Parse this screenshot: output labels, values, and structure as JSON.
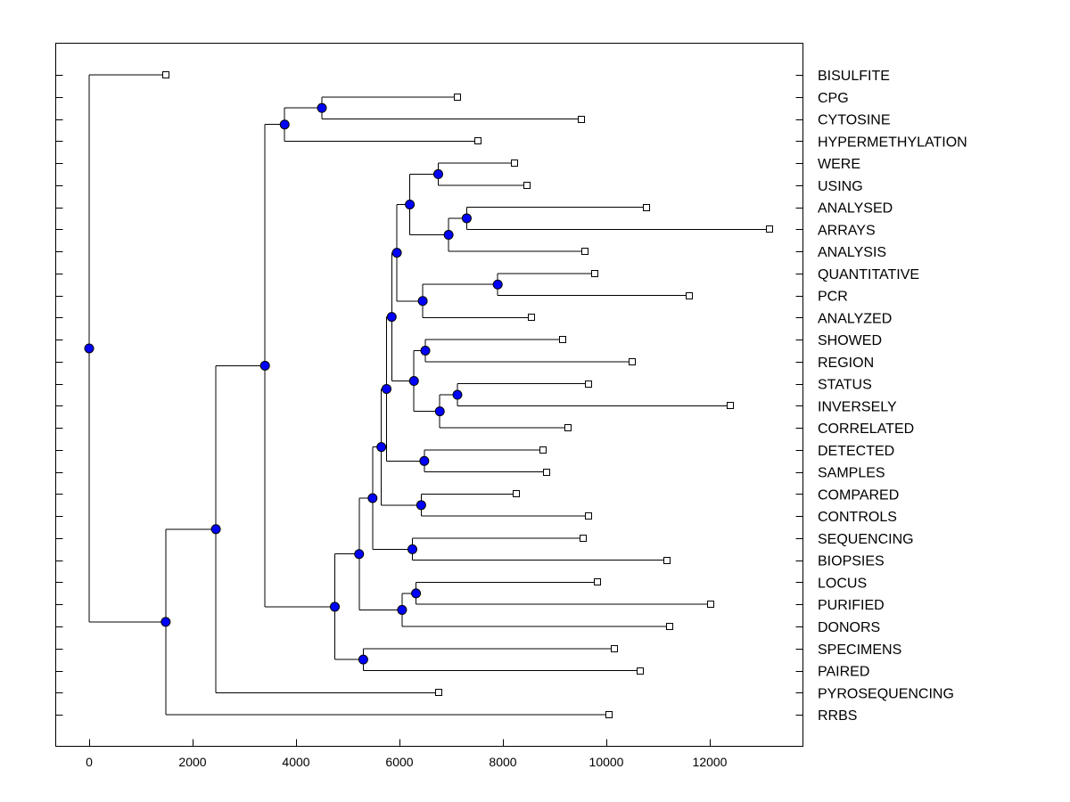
{
  "chart_data": {
    "type": "dendrogram",
    "title": "",
    "xlabel": "",
    "ylabel": "",
    "xlim": [
      -650,
      13800
    ],
    "x_ticks": [
      0,
      2000,
      4000,
      6000,
      8000,
      10000,
      12000
    ],
    "x_tick_labels": [
      "0",
      "2000",
      "4000",
      "6000",
      "8000",
      "10000",
      "12000"
    ],
    "node_color": "#0000ff",
    "leaves": [
      {
        "label": "BISULFITE",
        "value": 1480
      },
      {
        "label": "CPG",
        "value": 7120
      },
      {
        "label": "CYTOSINE",
        "value": 9520
      },
      {
        "label": "HYPERMETHYLATION",
        "value": 7520
      },
      {
        "label": "WERE",
        "value": 8230
      },
      {
        "label": "USING",
        "value": 8470
      },
      {
        "label": "ANALYSED",
        "value": 10780
      },
      {
        "label": "ARRAYS",
        "value": 13160
      },
      {
        "label": "ANALYSIS",
        "value": 9580
      },
      {
        "label": "QUANTITATIVE",
        "value": 9770
      },
      {
        "label": "PCR",
        "value": 11600
      },
      {
        "label": "ANALYZED",
        "value": 8550
      },
      {
        "label": "SHOWED",
        "value": 9150
      },
      {
        "label": "REGION",
        "value": 10500
      },
      {
        "label": "STATUS",
        "value": 9650
      },
      {
        "label": "INVERSELY",
        "value": 12400
      },
      {
        "label": "CORRELATED",
        "value": 9250
      },
      {
        "label": "DETECTED",
        "value": 8780
      },
      {
        "label": "SAMPLES",
        "value": 8840
      },
      {
        "label": "COMPARED",
        "value": 8250
      },
      {
        "label": "CONTROLS",
        "value": 9650
      },
      {
        "label": "SEQUENCING",
        "value": 9560
      },
      {
        "label": "BIOPSIES",
        "value": 11180
      },
      {
        "label": "LOCUS",
        "value": 9820
      },
      {
        "label": "PURIFIED",
        "value": 12020
      },
      {
        "label": "DONORS",
        "value": 11220
      },
      {
        "label": "SPECIMENS",
        "value": 10150
      },
      {
        "label": "PAIRED",
        "value": 10650
      },
      {
        "label": "PYROSEQUENCING",
        "value": 6750
      },
      {
        "label": "RRBS",
        "value": 10050
      }
    ],
    "merges": [
      {
        "id": "n1",
        "value": 4500,
        "children": [
          "CPG",
          "CYTOSINE"
        ]
      },
      {
        "id": "n2",
        "value": 3780,
        "children": [
          "n1",
          "HYPERMETHYLATION"
        ]
      },
      {
        "id": "n3",
        "value": 6750,
        "children": [
          "WERE",
          "USING"
        ]
      },
      {
        "id": "n4",
        "value": 7300,
        "children": [
          "ANALYSED",
          "ARRAYS"
        ]
      },
      {
        "id": "n5",
        "value": 6950,
        "children": [
          "n4",
          "ANALYSIS"
        ]
      },
      {
        "id": "n6",
        "value": 6200,
        "children": [
          "n3",
          "n5"
        ]
      },
      {
        "id": "n7",
        "value": 7900,
        "children": [
          "QUANTITATIVE",
          "PCR"
        ]
      },
      {
        "id": "n8",
        "value": 6450,
        "children": [
          "n7",
          "ANALYZED"
        ]
      },
      {
        "id": "n9",
        "value": 5950,
        "children": [
          "n6",
          "n8"
        ]
      },
      {
        "id": "n10",
        "value": 6500,
        "children": [
          "SHOWED",
          "REGION"
        ]
      },
      {
        "id": "n11",
        "value": 7120,
        "children": [
          "STATUS",
          "INVERSELY"
        ]
      },
      {
        "id": "n12",
        "value": 6780,
        "children": [
          "n11",
          "CORRELATED"
        ]
      },
      {
        "id": "n13",
        "value": 6280,
        "children": [
          "n10",
          "n12"
        ]
      },
      {
        "id": "n14",
        "value": 5850,
        "children": [
          "n9",
          "n13"
        ]
      },
      {
        "id": "n15",
        "value": 6480,
        "children": [
          "DETECTED",
          "SAMPLES"
        ]
      },
      {
        "id": "n16",
        "value": 5750,
        "children": [
          "n14",
          "n15"
        ]
      },
      {
        "id": "n17",
        "value": 6420,
        "children": [
          "COMPARED",
          "CONTROLS"
        ]
      },
      {
        "id": "n18",
        "value": 5650,
        "children": [
          "n16",
          "n17"
        ]
      },
      {
        "id": "n19",
        "value": 6250,
        "children": [
          "SEQUENCING",
          "BIOPSIES"
        ]
      },
      {
        "id": "n20",
        "value": 5480,
        "children": [
          "n18",
          "n19"
        ]
      },
      {
        "id": "n21",
        "value": 6320,
        "children": [
          "LOCUS",
          "PURIFIED"
        ]
      },
      {
        "id": "n22",
        "value": 6050,
        "children": [
          "n21",
          "DONORS"
        ]
      },
      {
        "id": "n23",
        "value": 5220,
        "children": [
          "n20",
          "n22"
        ]
      },
      {
        "id": "n24",
        "value": 5300,
        "children": [
          "SPECIMENS",
          "PAIRED"
        ]
      },
      {
        "id": "n25",
        "value": 4750,
        "children": [
          "n23",
          "n24"
        ]
      },
      {
        "id": "n26",
        "value": 3400,
        "children": [
          "n2",
          "n25"
        ]
      },
      {
        "id": "n27",
        "value": 2450,
        "children": [
          "n26",
          "PYROSEQUENCING"
        ]
      },
      {
        "id": "n28",
        "value": 1480,
        "children": [
          "n27",
          "RRBS"
        ]
      },
      {
        "id": "n29",
        "value": 0,
        "children": [
          "BISULFITE",
          "n28"
        ]
      }
    ]
  }
}
